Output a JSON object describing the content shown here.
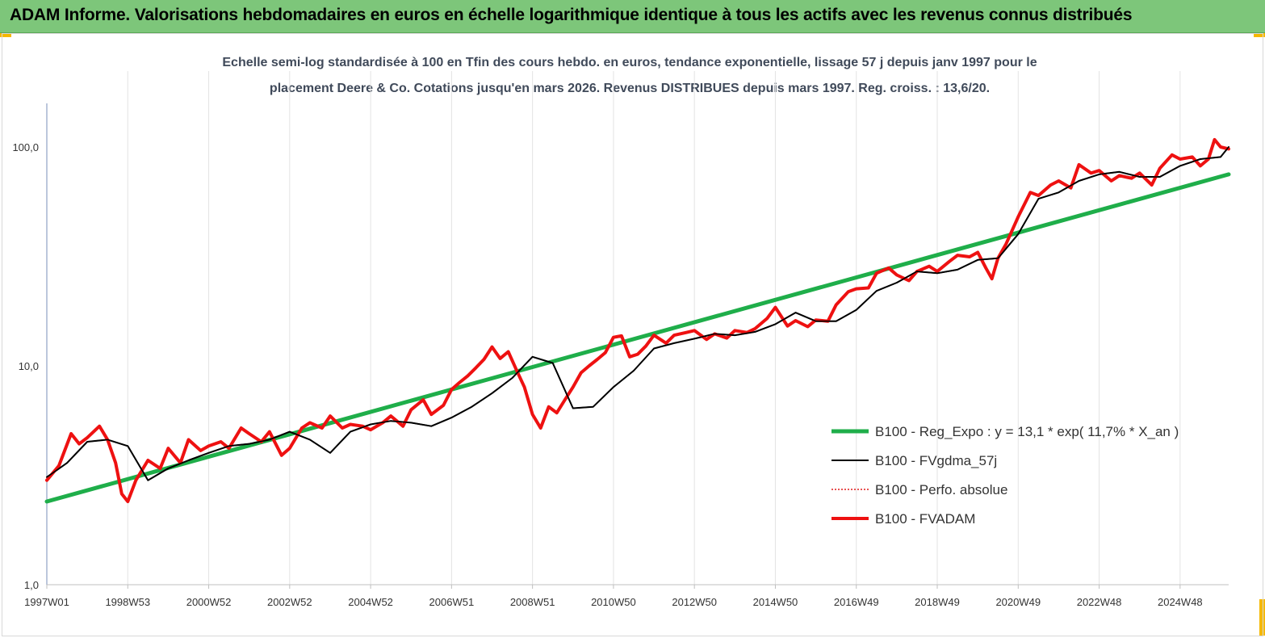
{
  "header": {
    "title": "ADAM Informe. Valorisations hebdomadaires en euros en échelle logarithmique identique à tous les actifs avec les revenus connus distribués"
  },
  "chart_data": {
    "type": "line",
    "title_line1": "Echelle semi-log standardisée à 100 en Tfin des cours hebdo. en euros, tendance exponentielle, lissage 57 j depuis janv 1997 pour le",
    "title_line2": "placement Deere & Co. Cotations jusqu'en mars 2026. Revenus DISTRIBUES depuis mars 1997. Reg. croiss. : 13,6/20.",
    "yscale": "log",
    "ylim": [
      1,
      200
    ],
    "xlim": [
      1997.0,
      2026.2
    ],
    "y_ticks": [
      {
        "value": 1,
        "label": "1,0"
      },
      {
        "value": 10,
        "label": "10,0"
      },
      {
        "value": 100,
        "label": "100,0"
      }
    ],
    "x_ticks": [
      {
        "value": 1997.0,
        "label": "1997W01"
      },
      {
        "value": 1999.0,
        "label": "1998W53"
      },
      {
        "value": 2001.0,
        "label": "2000W52"
      },
      {
        "value": 2003.0,
        "label": "2002W52"
      },
      {
        "value": 2005.0,
        "label": "2004W52"
      },
      {
        "value": 2007.0,
        "label": "2006W51"
      },
      {
        "value": 2009.0,
        "label": "2008W51"
      },
      {
        "value": 2011.0,
        "label": "2010W50"
      },
      {
        "value": 2013.0,
        "label": "2012W50"
      },
      {
        "value": 2015.0,
        "label": "2014W50"
      },
      {
        "value": 2017.0,
        "label": "2016W49"
      },
      {
        "value": 2019.0,
        "label": "2018W49"
      },
      {
        "value": 2021.0,
        "label": "2020W49"
      },
      {
        "value": 2023.0,
        "label": "2022W48"
      },
      {
        "value": 2025.0,
        "label": "2024W48"
      }
    ],
    "grid_vertical": true,
    "grid_horizontal": false,
    "legend_position": "bottom-right",
    "series": [
      {
        "name": "B100 - Reg_Expo : y = 13,1 * exp( 11,7% *  X_an )",
        "color": "#1fae4a",
        "style": "solid",
        "width": 5,
        "x": [
          1997.0,
          2026.2
        ],
        "y": [
          2.4,
          75
        ]
      },
      {
        "name": "B100 - FVgdma_57j",
        "color": "#000000",
        "style": "solid",
        "width": 2,
        "x": [
          1997.0,
          1997.5,
          1998.0,
          1998.5,
          1999.0,
          1999.5,
          2000.0,
          2000.5,
          2001.0,
          2001.5,
          2002.0,
          2002.5,
          2003.0,
          2003.5,
          2004.0,
          2004.5,
          2005.0,
          2005.5,
          2006.0,
          2006.5,
          2007.0,
          2007.5,
          2008.0,
          2008.5,
          2009.0,
          2009.5,
          2010.0,
          2010.5,
          2011.0,
          2011.5,
          2012.0,
          2012.5,
          2013.0,
          2013.5,
          2014.0,
          2014.5,
          2015.0,
          2015.5,
          2016.0,
          2016.5,
          2017.0,
          2017.5,
          2018.0,
          2018.5,
          2019.0,
          2019.5,
          2020.0,
          2020.5,
          2021.0,
          2021.5,
          2022.0,
          2022.5,
          2023.0,
          2023.5,
          2024.0,
          2024.5,
          2025.0,
          2025.5,
          2026.0,
          2026.2
        ],
        "y": [
          3.1,
          3.6,
          4.5,
          4.6,
          4.3,
          3.0,
          3.4,
          3.7,
          4.0,
          4.3,
          4.4,
          4.6,
          5.0,
          4.6,
          4.0,
          5.0,
          5.4,
          5.6,
          5.5,
          5.3,
          5.8,
          6.5,
          7.5,
          8.8,
          11.0,
          10.3,
          6.4,
          6.5,
          8.0,
          9.5,
          12.0,
          12.7,
          13.3,
          14.0,
          13.8,
          14.3,
          15.5,
          17.5,
          16.0,
          16.0,
          18.0,
          22.0,
          24.0,
          27.0,
          26.5,
          27.5,
          30.5,
          31.0,
          40.0,
          58.0,
          62.0,
          70.0,
          75.0,
          77.0,
          73.0,
          73.0,
          82.0,
          88.0,
          90.0,
          100.0
        ]
      },
      {
        "name": "B100 - Perfo. absolue",
        "color": "#e01b1b",
        "style": "dotted",
        "width": 1
      },
      {
        "name": "B100 - FVADAM",
        "color": "#ee1111",
        "style": "solid",
        "width": 4,
        "x": [
          1997.0,
          1997.3,
          1997.6,
          1997.8,
          1998.0,
          1998.3,
          1998.5,
          1998.7,
          1998.85,
          1999.0,
          1999.2,
          1999.5,
          1999.8,
          2000.0,
          2000.3,
          2000.5,
          2000.8,
          2001.0,
          2001.3,
          2001.5,
          2001.8,
          2002.0,
          2002.3,
          2002.5,
          2002.8,
          2003.0,
          2003.3,
          2003.5,
          2003.8,
          2004.0,
          2004.3,
          2004.5,
          2004.8,
          2005.0,
          2005.3,
          2005.5,
          2005.8,
          2006.0,
          2006.3,
          2006.5,
          2006.8,
          2007.0,
          2007.2,
          2007.4,
          2007.6,
          2007.8,
          2008.0,
          2008.2,
          2008.4,
          2008.6,
          2008.8,
          2009.0,
          2009.2,
          2009.4,
          2009.6,
          2009.8,
          2010.0,
          2010.2,
          2010.4,
          2010.6,
          2010.8,
          2011.0,
          2011.2,
          2011.4,
          2011.6,
          2011.8,
          2012.0,
          2012.3,
          2012.5,
          2012.8,
          2013.0,
          2013.3,
          2013.5,
          2013.8,
          2014.0,
          2014.3,
          2014.5,
          2014.8,
          2015.0,
          2015.3,
          2015.5,
          2015.8,
          2016.0,
          2016.3,
          2016.5,
          2016.8,
          2017.0,
          2017.3,
          2017.5,
          2017.8,
          2018.0,
          2018.3,
          2018.5,
          2018.8,
          2019.0,
          2019.3,
          2019.5,
          2019.8,
          2020.0,
          2020.2,
          2020.35,
          2020.5,
          2020.7,
          2021.0,
          2021.3,
          2021.5,
          2021.8,
          2022.0,
          2022.3,
          2022.5,
          2022.8,
          2023.0,
          2023.3,
          2023.5,
          2023.8,
          2024.0,
          2024.3,
          2024.5,
          2024.8,
          2025.0,
          2025.3,
          2025.5,
          2025.7,
          2025.85,
          2026.0,
          2026.2
        ],
        "y": [
          3.0,
          3.5,
          4.9,
          4.4,
          4.7,
          5.3,
          4.6,
          3.6,
          2.6,
          2.4,
          3.0,
          3.7,
          3.4,
          4.2,
          3.6,
          4.6,
          4.1,
          4.3,
          4.5,
          4.2,
          5.2,
          4.9,
          4.5,
          5.0,
          3.9,
          4.2,
          5.2,
          5.5,
          5.2,
          5.9,
          5.2,
          5.4,
          5.3,
          5.1,
          5.5,
          5.9,
          5.3,
          6.3,
          7.0,
          6.0,
          6.6,
          7.8,
          8.4,
          9.0,
          9.8,
          10.7,
          12.2,
          10.8,
          11.6,
          9.6,
          8.0,
          6.0,
          5.2,
          6.5,
          6.1,
          7.0,
          8.0,
          9.3,
          10.0,
          10.7,
          11.5,
          13.5,
          13.7,
          11.0,
          11.3,
          12.3,
          13.8,
          12.7,
          13.8,
          14.2,
          14.5,
          13.2,
          14.0,
          13.4,
          14.5,
          14.2,
          14.8,
          16.5,
          18.5,
          15.2,
          16.1,
          15.1,
          16.2,
          16.0,
          19.0,
          21.8,
          22.5,
          22.7,
          26.5,
          28.0,
          26.0,
          24.5,
          27.0,
          28.5,
          27.0,
          30.0,
          32.0,
          31.5,
          33.0,
          28.0,
          25.0,
          31.0,
          36.0,
          48.0,
          62.0,
          60.0,
          67.0,
          70.0,
          65.0,
          83.0,
          76.0,
          78.0,
          70.0,
          74.0,
          72.0,
          76.0,
          67.0,
          80.0,
          92.0,
          88.0,
          90.0,
          82.0,
          88.0,
          108.0,
          100.0,
          98.0
        ]
      }
    ]
  }
}
